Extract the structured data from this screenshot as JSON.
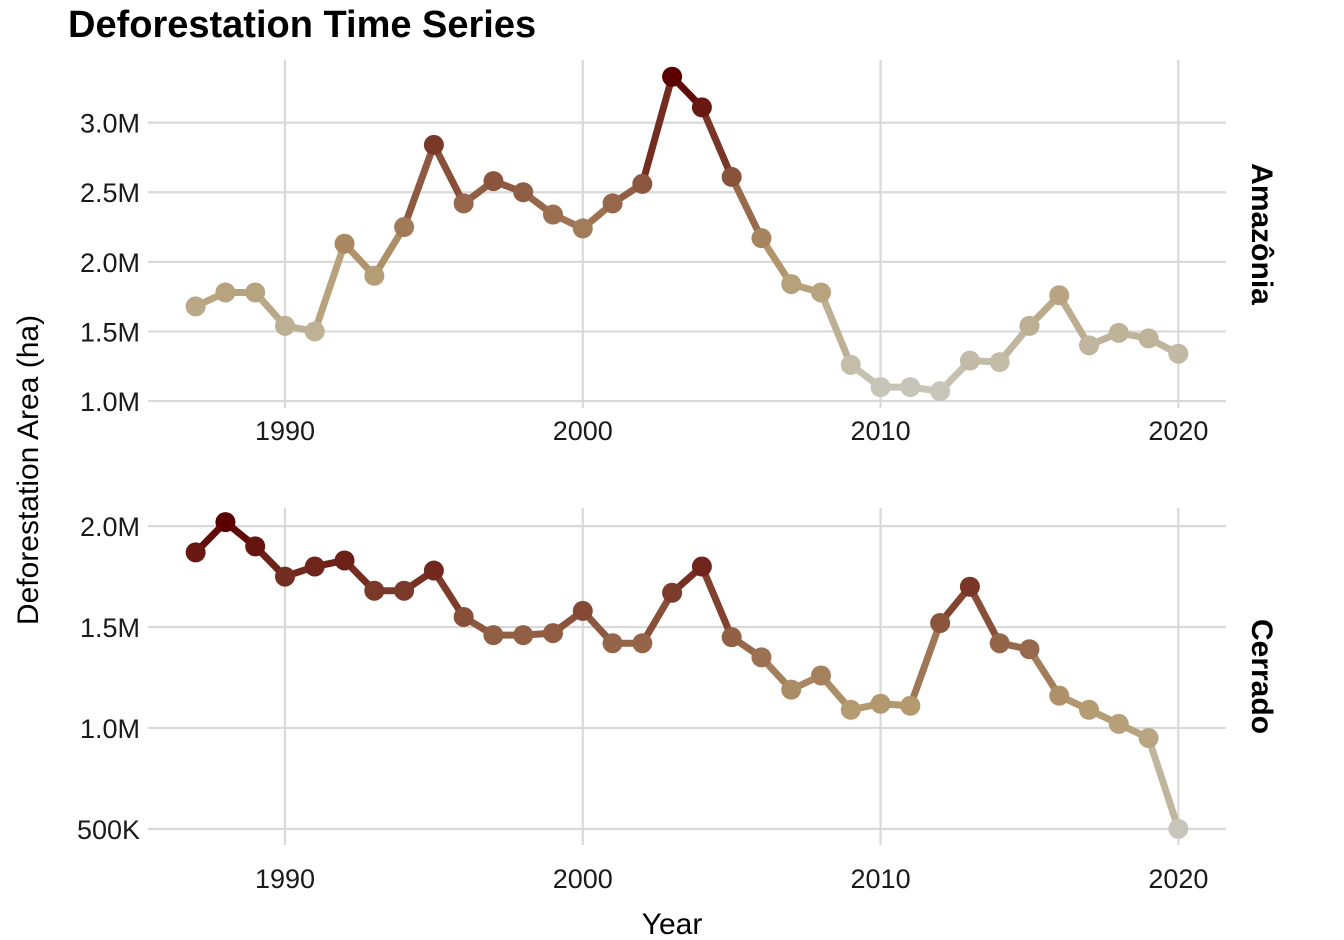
{
  "title": "Deforestation Time Series",
  "chart_data": {
    "type": "line",
    "title": "Deforestation Time Series",
    "xlabel": "Year",
    "ylabel": "Deforestation Area (ha)",
    "grid": true,
    "legend": "none",
    "color_scale": {
      "low": "#c8c6ba",
      "mid": "#b39a6f",
      "high": "#5a0000"
    },
    "x_ticks": [
      1990,
      2000,
      2010,
      2020
    ],
    "x_tick_labels": [
      "1990",
      "2000",
      "2010",
      "2020"
    ],
    "xlim": [
      1985.4,
      2021.6
    ],
    "panels": [
      {
        "name": "Amazônia",
        "y_ticks": [
          1000000,
          1500000,
          2000000,
          2500000,
          3000000
        ],
        "y_tick_labels": [
          "1.0M",
          "1.5M",
          "2.0M",
          "2.5M",
          "3.0M"
        ],
        "ylim": [
          950000,
          3450000
        ],
        "x": [
          1987,
          1988,
          1989,
          1990,
          1991,
          1992,
          1993,
          1994,
          1995,
          1996,
          1997,
          1998,
          1999,
          2000,
          2001,
          2002,
          2003,
          2004,
          2005,
          2006,
          2007,
          2008,
          2009,
          2010,
          2011,
          2012,
          2013,
          2014,
          2015,
          2016,
          2017,
          2018,
          2019,
          2020
        ],
        "values": [
          1680000,
          1780000,
          1780000,
          1540000,
          1500000,
          2130000,
          1900000,
          2250000,
          2840000,
          2420000,
          2580000,
          2500000,
          2340000,
          2240000,
          2420000,
          2560000,
          3330000,
          3110000,
          2610000,
          2170000,
          1840000,
          1780000,
          1260000,
          1100000,
          1100000,
          1070000,
          1290000,
          1280000,
          1540000,
          1760000,
          1400000,
          1490000,
          1450000,
          1340000
        ]
      },
      {
        "name": "Cerrado",
        "y_ticks": [
          500000,
          1000000,
          1500000,
          2000000
        ],
        "y_tick_labels": [
          "500K",
          "1.0M",
          "1.5M",
          "2.0M"
        ],
        "ylim": [
          420000,
          2090000
        ],
        "x": [
          1987,
          1988,
          1989,
          1990,
          1991,
          1992,
          1993,
          1994,
          1995,
          1996,
          1997,
          1998,
          1999,
          2000,
          2001,
          2002,
          2003,
          2004,
          2005,
          2006,
          2007,
          2008,
          2009,
          2010,
          2011,
          2012,
          2013,
          2014,
          2015,
          2016,
          2017,
          2018,
          2019,
          2020
        ],
        "values": [
          1870000,
          2020000,
          1900000,
          1750000,
          1800000,
          1830000,
          1680000,
          1680000,
          1780000,
          1550000,
          1460000,
          1460000,
          1470000,
          1580000,
          1420000,
          1420000,
          1670000,
          1800000,
          1450000,
          1350000,
          1190000,
          1260000,
          1090000,
          1120000,
          1110000,
          1520000,
          1700000,
          1420000,
          1390000,
          1160000,
          1090000,
          1020000,
          950000,
          500000
        ]
      }
    ]
  }
}
